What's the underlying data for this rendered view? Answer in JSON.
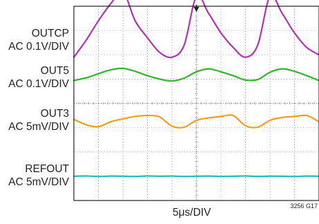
{
  "chart_data": {
    "type": "line",
    "title": "",
    "xlabel": "5μs/DIV",
    "ylabel": "",
    "x_scale_per_div": "5μs",
    "x_divisions": 10,
    "y_divisions": 8,
    "x": [
      0,
      2.5,
      5,
      7.5,
      10,
      12.5,
      15,
      17.5,
      20,
      22.5,
      25,
      27.5,
      30,
      32.5,
      35,
      37.5,
      40,
      42.5,
      45,
      47.5,
      50
    ],
    "xlim": [
      0,
      50
    ],
    "grid": true,
    "trigger_marker": true,
    "series": [
      {
        "name": "OUTCP",
        "scale": "AC 0.1V/DIV",
        "color": "#b62fb4",
        "center_div": 6.9,
        "values": [
          -0.1,
          -0.03,
          0.05,
          0.12,
          0.17,
          0.05,
          -0.02,
          -0.08,
          -0.1,
          -0.05,
          0.15,
          0.08,
          0.0,
          -0.06,
          -0.1,
          -0.05,
          0.15,
          0.08,
          0.0,
          -0.06,
          -0.09
        ]
      },
      {
        "name": "OUT5",
        "scale": "AC 0.1V/DIV",
        "color": "#2fb52a",
        "center_div": 5.1,
        "values": [
          -0.016,
          -0.005,
          0.012,
          0.028,
          0.034,
          0.022,
          0.004,
          -0.01,
          -0.018,
          -0.006,
          0.02,
          0.032,
          0.02,
          0.004,
          -0.014,
          -0.012,
          0.018,
          0.032,
          0.022,
          0.004,
          -0.016
        ]
      },
      {
        "name": "OUT3",
        "scale": "AC 5mV/DIV",
        "color": "#f29d1e",
        "center_div": 3.3,
        "values": [
          0.2,
          -0.9,
          -1.3,
          -0.3,
          0.3,
          0.8,
          1.0,
          0.7,
          -1.2,
          -1.4,
          0.0,
          0.5,
          0.8,
          1.0,
          -1.1,
          -1.4,
          0.0,
          0.6,
          0.8,
          1.0,
          -0.3
        ]
      },
      {
        "name": "REFOUT",
        "scale": "AC 5mV/DIV",
        "color": "#1fbcc3",
        "center_div": 1.0,
        "values": [
          0.0,
          0.05,
          -0.05,
          0.03,
          0.0,
          -0.04,
          0.05,
          0.0,
          0.03,
          -0.05,
          0.0,
          0.04,
          -0.03,
          0.0,
          0.05,
          -0.04,
          0.02,
          0.0,
          -0.05,
          0.03,
          0.0
        ]
      }
    ],
    "figure_id": "3256 G17"
  }
}
